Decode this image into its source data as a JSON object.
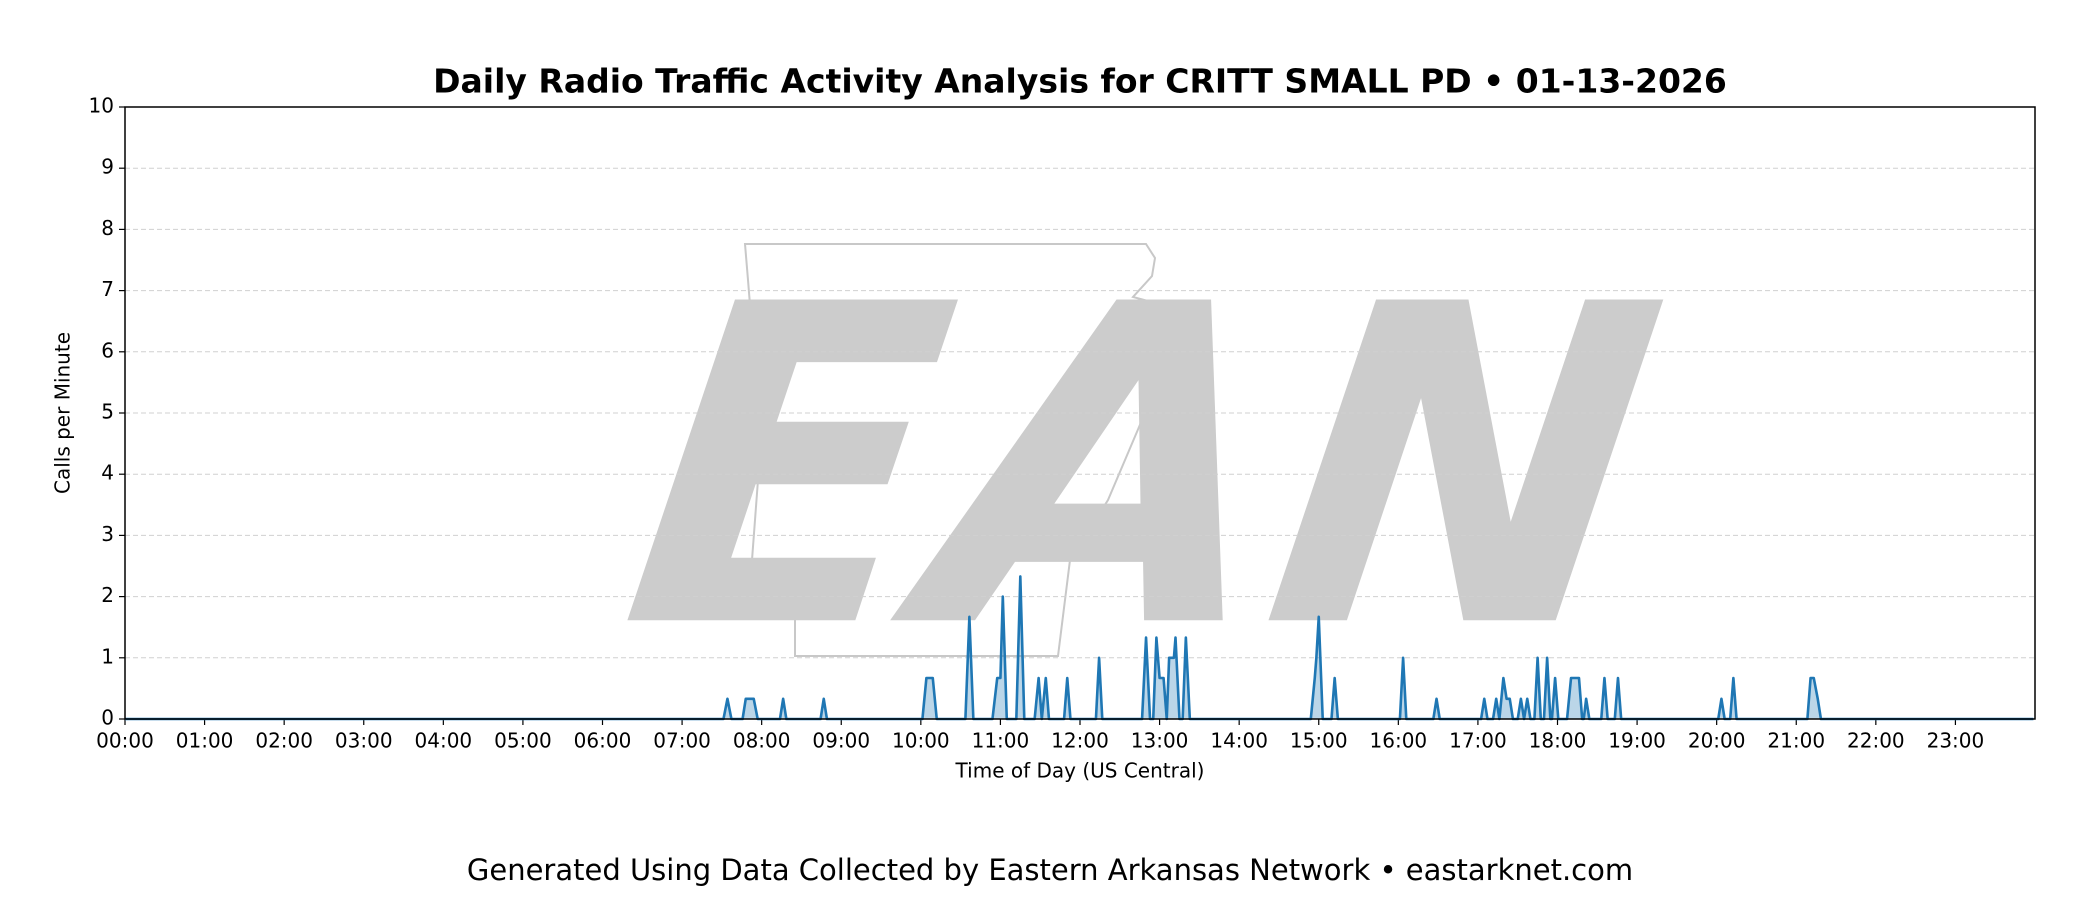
{
  "chart_data": {
    "type": "line",
    "title": "Daily Radio Traffic Activity Analysis for CRITT SMALL PD • 01-13-2026",
    "xlabel": "Time of Day (US Central)",
    "ylabel": "Calls per Minute",
    "footer": "Generated Using Data Collected by Eastern Arkansas Network • eastarknet.com",
    "watermark": "EAN",
    "xlim": [
      0,
      24
    ],
    "ylim": [
      0,
      10
    ],
    "yticks": [
      0,
      1,
      2,
      3,
      4,
      5,
      6,
      7,
      8,
      9,
      10
    ],
    "xticks": [
      {
        "value": 0,
        "label": "00:00"
      },
      {
        "value": 1,
        "label": "01:00"
      },
      {
        "value": 2,
        "label": "02:00"
      },
      {
        "value": 3,
        "label": "03:00"
      },
      {
        "value": 4,
        "label": "04:00"
      },
      {
        "value": 5,
        "label": "05:00"
      },
      {
        "value": 6,
        "label": "06:00"
      },
      {
        "value": 7,
        "label": "07:00"
      },
      {
        "value": 8,
        "label": "08:00"
      },
      {
        "value": 9,
        "label": "09:00"
      },
      {
        "value": 10,
        "label": "10:00"
      },
      {
        "value": 11,
        "label": "11:00"
      },
      {
        "value": 12,
        "label": "12:00"
      },
      {
        "value": 13,
        "label": "13:00"
      },
      {
        "value": 14,
        "label": "14:00"
      },
      {
        "value": 15,
        "label": "15:00"
      },
      {
        "value": 16,
        "label": "16:00"
      },
      {
        "value": 17,
        "label": "17:00"
      },
      {
        "value": 18,
        "label": "18:00"
      },
      {
        "value": 19,
        "label": "19:00"
      },
      {
        "value": 20,
        "label": "20:00"
      },
      {
        "value": 21,
        "label": "21:00"
      },
      {
        "value": 22,
        "label": "22:00"
      },
      {
        "value": 23,
        "label": "23:00"
      }
    ],
    "grid": true,
    "color": "#1f77b4",
    "x": [
      0,
      7.52,
      7.57,
      7.62,
      7.76,
      7.8,
      7.9,
      7.95,
      8.23,
      8.27,
      8.31,
      8.74,
      8.78,
      8.82,
      10.02,
      10.07,
      10.15,
      10.2,
      10.56,
      10.61,
      10.66,
      10.9,
      10.96,
      11.0,
      11.03,
      11.08,
      11.2,
      11.25,
      11.3,
      11.43,
      11.48,
      11.52,
      11.57,
      11.61,
      11.8,
      11.84,
      11.88,
      12.2,
      12.24,
      12.28,
      12.78,
      12.83,
      12.88,
      12.92,
      12.96,
      13.0,
      13.05,
      13.09,
      13.12,
      13.18,
      13.2,
      13.25,
      13.29,
      13.33,
      13.38,
      14.9,
      14.95,
      14.97,
      15.0,
      15.05,
      15.16,
      15.2,
      15.24,
      16.02,
      16.06,
      16.1,
      16.44,
      16.48,
      16.52,
      17.04,
      17.08,
      17.12,
      17.19,
      17.23,
      17.27,
      17.32,
      17.36,
      17.4,
      17.44,
      17.5,
      17.54,
      17.58,
      17.62,
      17.66,
      17.71,
      17.75,
      17.79,
      17.83,
      17.87,
      17.91,
      17.93,
      17.97,
      18.01,
      18.12,
      18.17,
      18.22,
      18.27,
      18.31,
      18.33,
      18.36,
      18.4,
      18.55,
      18.59,
      18.63,
      18.72,
      18.76,
      18.8,
      20.02,
      20.06,
      20.1,
      20.17,
      20.21,
      20.25,
      21.14,
      21.18,
      21.22,
      21.27,
      21.31,
      23.98
    ],
    "values": [
      0,
      0,
      0.33,
      0,
      0,
      0.33,
      0.33,
      0,
      0,
      0.33,
      0,
      0,
      0.33,
      0,
      0,
      0.67,
      0.67,
      0,
      0,
      1.67,
      0,
      0,
      0.67,
      0.67,
      2.0,
      0,
      0,
      2.33,
      0,
      0,
      0.67,
      0,
      0.67,
      0,
      0,
      0.67,
      0,
      0,
      1.0,
      0,
      0,
      1.33,
      0,
      0,
      1.33,
      0.67,
      0.67,
      0,
      1.0,
      1.0,
      1.33,
      0,
      0,
      1.33,
      0,
      0,
      0.67,
      1.0,
      1.67,
      0,
      0,
      0.67,
      0,
      0,
      1.0,
      0,
      0,
      0.33,
      0,
      0,
      0.33,
      0,
      0,
      0.33,
      0,
      0.67,
      0.33,
      0.33,
      0,
      0,
      0.33,
      0,
      0.33,
      0,
      0,
      1.0,
      0,
      0,
      1.0,
      0,
      0,
      0.67,
      0,
      0,
      0.67,
      0.67,
      0.67,
      0,
      0,
      0.33,
      0,
      0,
      0.67,
      0,
      0,
      0.67,
      0,
      0,
      0.33,
      0,
      0,
      0.67,
      0,
      0,
      0.67,
      0.67,
      0.33,
      0,
      0
    ]
  }
}
